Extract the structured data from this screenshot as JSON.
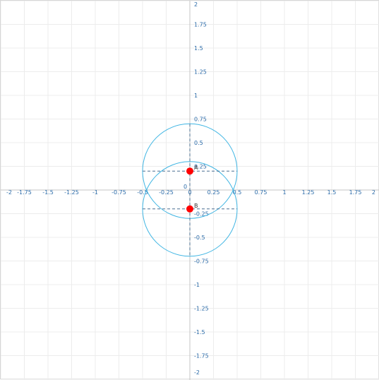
{
  "graph": {
    "x_range": [
      -2,
      2
    ],
    "y_range": [
      -2,
      2
    ],
    "x_tick_labels": [
      "-2",
      "-1.75",
      "-1.5",
      "-1.25",
      "-1",
      "-0.75",
      "-0.5",
      "-0.25",
      "0",
      "0.25",
      "0.5",
      "0.75",
      "1",
      "1.25",
      "1.5",
      "1.75",
      "2"
    ],
    "y_tick_labels": [
      "2",
      "1.75",
      "1.5",
      "1.25",
      "1",
      "0.75",
      "0.5",
      "0.25",
      "0",
      "-0.25",
      "-0.5",
      "-0.75",
      "-1",
      "-1.25",
      "-1.5",
      "-1.75",
      "-2"
    ],
    "grid_step": 0.25,
    "grid": true,
    "colors": {
      "grid": "#ececec",
      "axis": "#c4c4c4",
      "tick_label": "#2a6aa8",
      "circle": "#3fb5e3",
      "guide": "#4a6f92",
      "point": "#ff0000"
    },
    "points": [
      {
        "label": "A",
        "x": 0,
        "y": 0.2
      },
      {
        "label": "B",
        "x": 0,
        "y": -0.2
      }
    ],
    "circles": [
      {
        "cx": 0,
        "cy": 0.2,
        "r": 0.5
      },
      {
        "cx": 0,
        "cy": -0.2,
        "r": 0.5
      }
    ]
  }
}
